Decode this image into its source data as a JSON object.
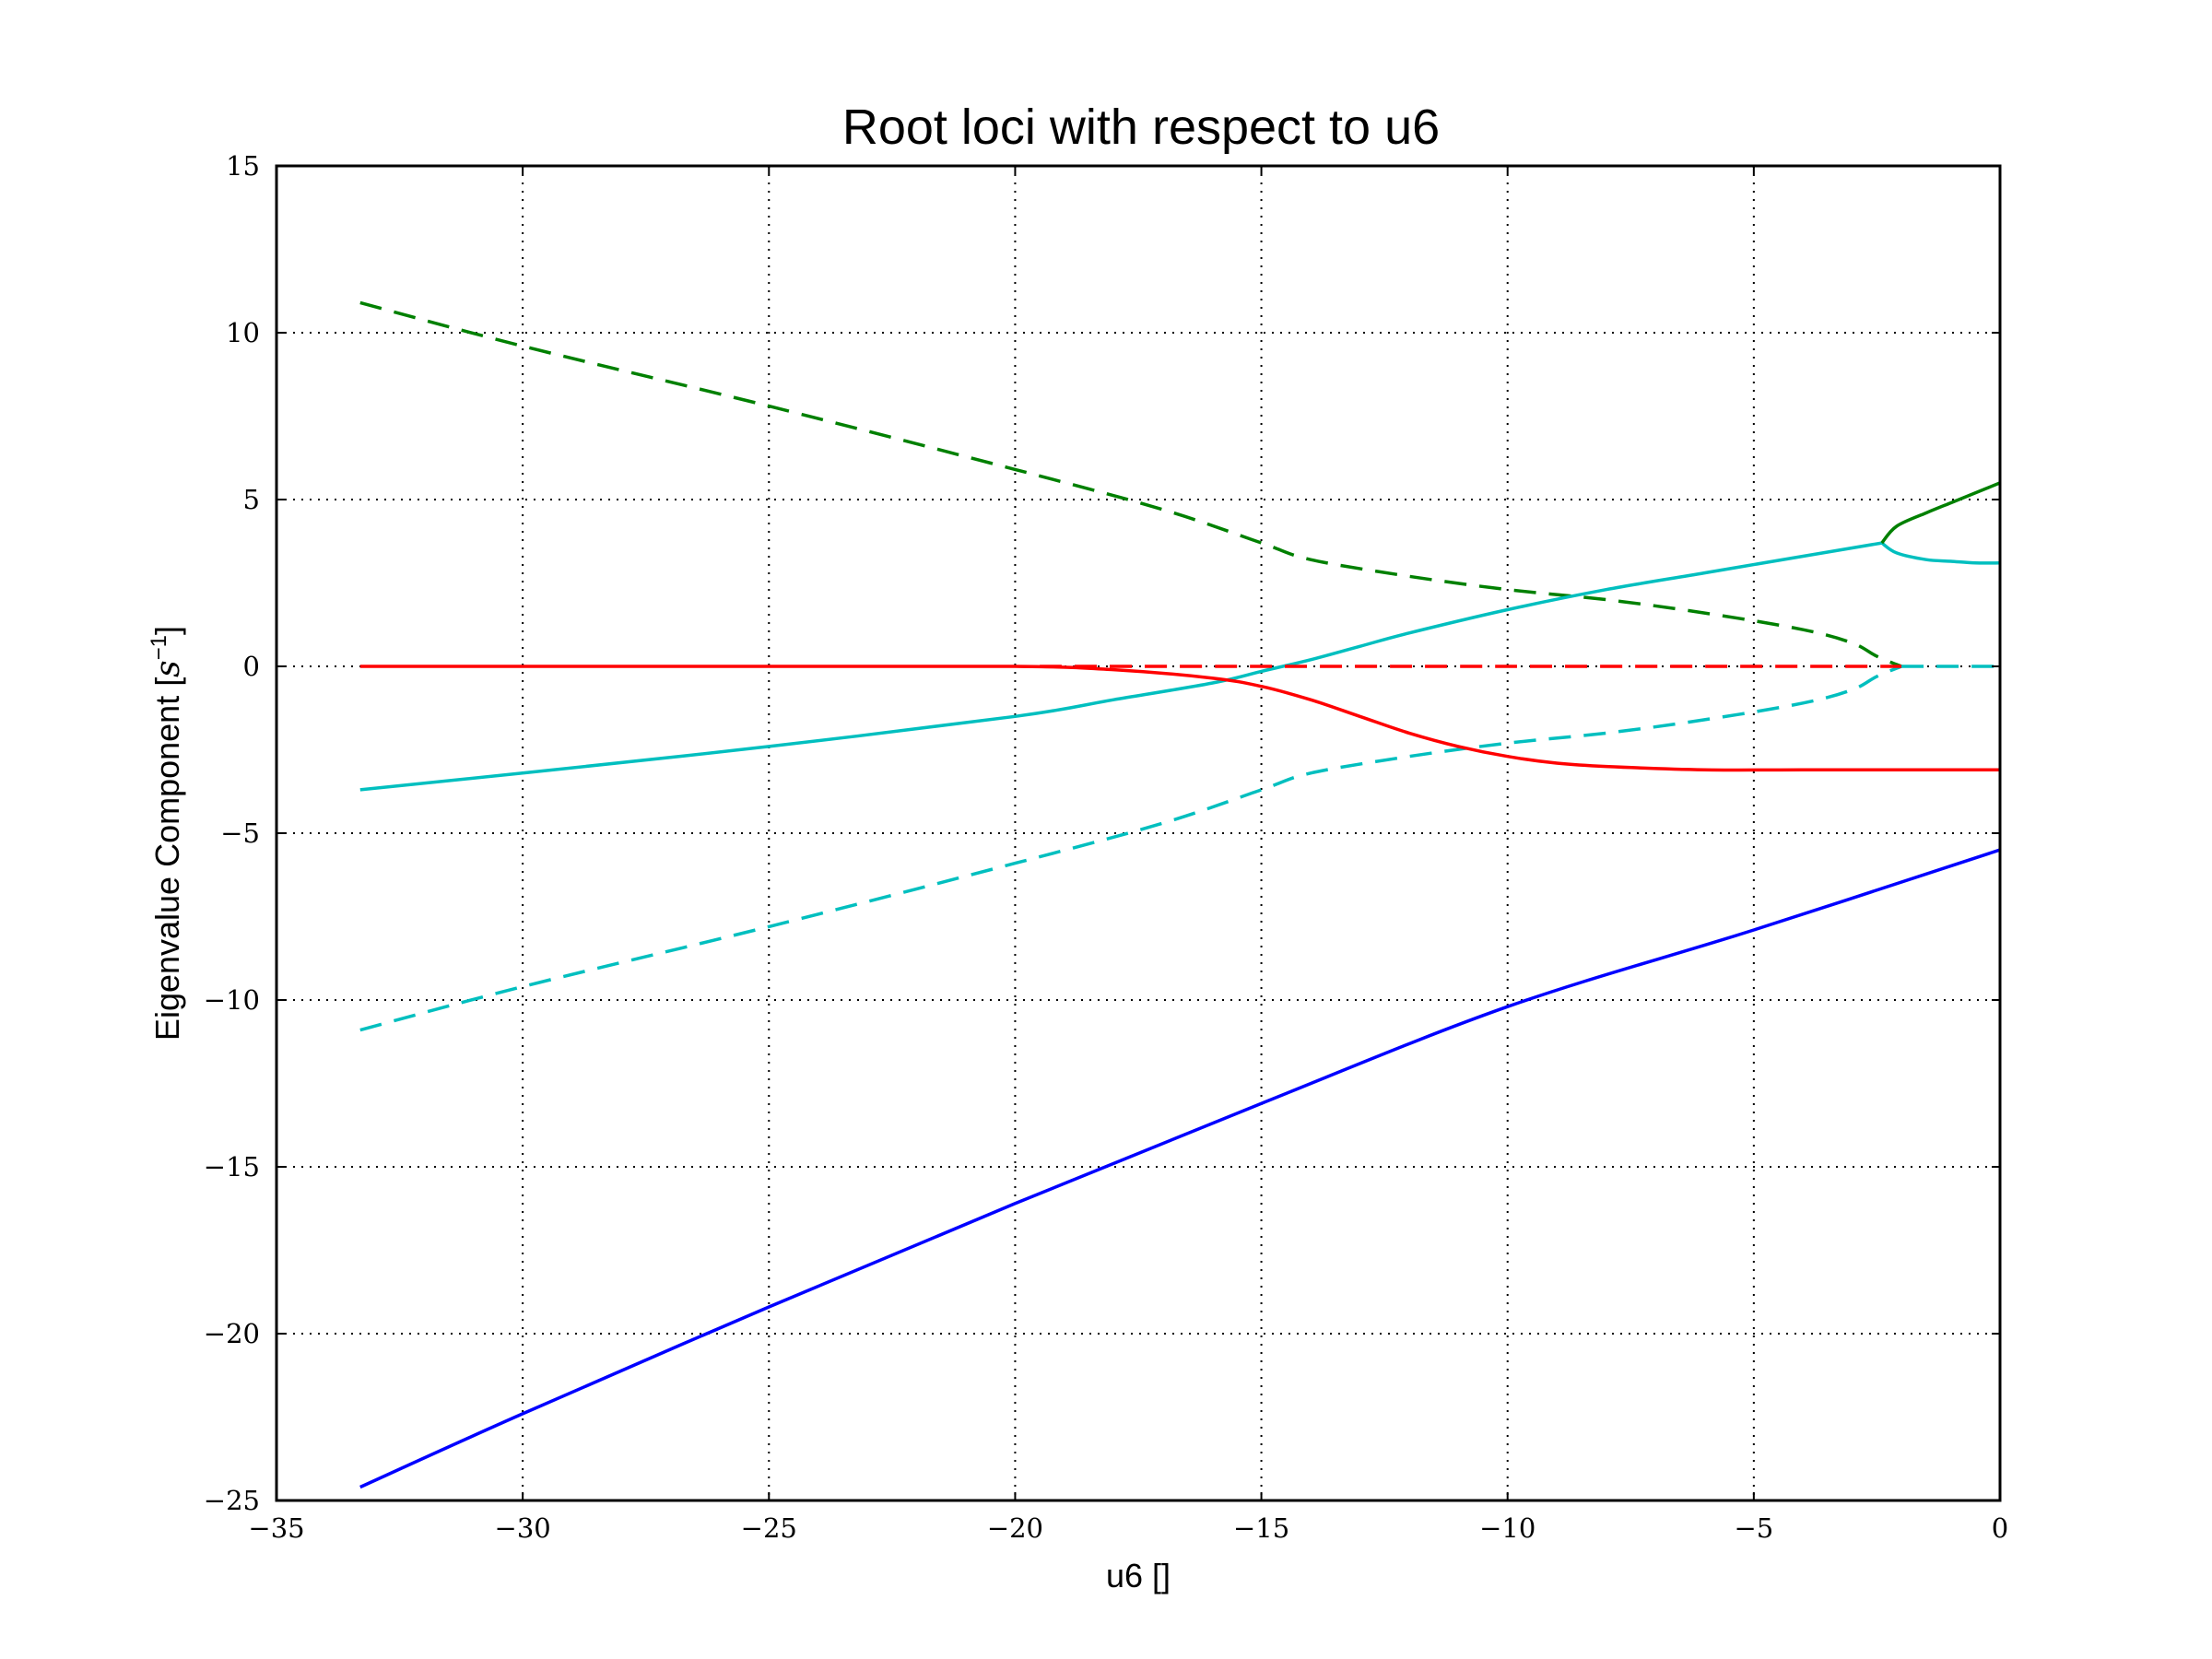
{
  "chart_data": {
    "type": "line",
    "title": "Root loci with respect to u6",
    "xlabel": "u6 []",
    "ylabel": "Eigenvalue Component [s^-1]",
    "xlim": [
      -35,
      0
    ],
    "ylim": [
      -25,
      15
    ],
    "xticks": [
      -35,
      -30,
      -25,
      -20,
      -15,
      -10,
      -5,
      0
    ],
    "yticks": [
      -25,
      -20,
      -15,
      -10,
      -5,
      0,
      5,
      10,
      15
    ],
    "xtick_labels": [
      "−35",
      "−30",
      "−25",
      "−20",
      "−15",
      "−10",
      "−5",
      "0"
    ],
    "ytick_labels": [
      "−25",
      "−20",
      "−15",
      "−10",
      "−5",
      "0",
      "5",
      "10",
      "15"
    ],
    "grid": true,
    "series": [
      {
        "color": "#0000ff",
        "style": "solid",
        "x": [
          -33.3,
          -30,
          -25,
          -20,
          -15,
          -10,
          -5,
          0
        ],
        "y": [
          -24.6,
          -22.4,
          -19.2,
          -16.1,
          -13.1,
          -10.2,
          -7.9,
          -5.5
        ]
      },
      {
        "color": "#008000",
        "style": "dashed",
        "x": [
          -33.3,
          -30,
          -25,
          -20,
          -17,
          -15,
          -14,
          -12,
          -10,
          -8,
          -6,
          -4,
          -3,
          -2.5,
          -2
        ],
        "y": [
          10.9,
          9.6,
          7.8,
          5.9,
          4.7,
          3.7,
          3.2,
          2.7,
          2.3,
          2.0,
          1.6,
          1.1,
          0.7,
          0.3,
          0
        ]
      },
      {
        "color": "#00bfbf",
        "style": "dashed",
        "x": [
          -33.3,
          -30,
          -25,
          -20,
          -17,
          -15,
          -14,
          -12,
          -10,
          -8,
          -6,
          -4,
          -3,
          -2.5,
          -2
        ],
        "y": [
          -10.9,
          -9.6,
          -7.8,
          -5.9,
          -4.7,
          -3.7,
          -3.2,
          -2.7,
          -2.3,
          -2.0,
          -1.6,
          -1.1,
          -0.7,
          -0.3,
          0
        ]
      },
      {
        "color": "#00bfbf",
        "style": "solid",
        "x": [
          -33.3,
          -30,
          -25,
          -20,
          -18,
          -16,
          -15,
          -14,
          -13,
          -12,
          -10,
          -8,
          -6,
          -4,
          -2.4
        ],
        "y": [
          -3.7,
          -3.2,
          -2.4,
          -1.5,
          -1.0,
          -0.5,
          -0.15,
          0.2,
          0.6,
          1.0,
          1.7,
          2.3,
          2.8,
          3.3,
          3.7
        ]
      },
      {
        "color": "#00bfbf",
        "style": "solid",
        "x": [
          -2.4,
          -2.1,
          -1.5,
          -1,
          -0.5,
          0
        ],
        "y": [
          3.7,
          3.4,
          3.2,
          3.15,
          3.1,
          3.1
        ]
      },
      {
        "color": "#008000",
        "style": "solid",
        "x": [
          -2.4,
          -2.1,
          -1.5,
          -1,
          -0.5,
          0
        ],
        "y": [
          3.7,
          4.2,
          4.6,
          4.9,
          5.2,
          5.5
        ]
      },
      {
        "color": "#ff0000",
        "style": "solid",
        "x": [
          -33.3,
          -25,
          -20,
          -18,
          -16,
          -15,
          -14,
          -13,
          -12,
          -11,
          -10,
          -9,
          -8,
          -6,
          -4,
          -2,
          0
        ],
        "y": [
          0,
          0,
          0,
          -0.1,
          -0.35,
          -0.6,
          -1.0,
          -1.5,
          -2.0,
          -2.4,
          -2.7,
          -2.9,
          -3.0,
          -3.1,
          -3.1,
          -3.1,
          -3.1
        ]
      },
      {
        "color": "#ff0000",
        "style": "dashed",
        "x": [
          -19.5,
          -15,
          -10,
          -5,
          -2
        ],
        "y": [
          0,
          0,
          0,
          0,
          0
        ]
      },
      {
        "color": "#00bfbf",
        "style": "dashed",
        "x": [
          -2,
          -1,
          0
        ],
        "y": [
          0,
          0,
          0
        ]
      }
    ]
  }
}
